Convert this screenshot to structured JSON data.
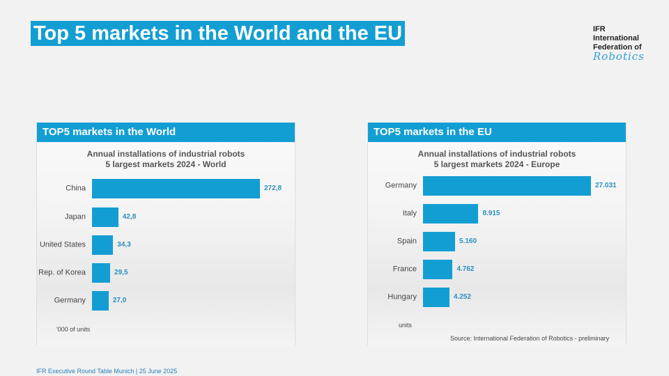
{
  "slide": {
    "title": "Top 5 markets in the World and the EU",
    "footer": "IFR Executive Round Table Munich | 25 June 2025"
  },
  "logo": {
    "line1": "IFR",
    "line2": "International",
    "line3": "Federation of",
    "line4": "Robotics"
  },
  "colors": {
    "accent": "#139ed3"
  },
  "panels": [
    {
      "header": "TOP5 markets in the World",
      "unit_note": "'000 of units"
    },
    {
      "header": "TOP5 markets in the EU",
      "unit_note": "units",
      "source": "Source: International Federation of Robotics - preliminary"
    }
  ],
  "chart_data": [
    {
      "type": "bar",
      "orientation": "horizontal",
      "title": "Annual installations of industrial robots",
      "subtitle": "5 largest markets 2024 - World",
      "categories": [
        "China",
        "Japan",
        "United States",
        "Rep. of Korea",
        "Germany"
      ],
      "values": [
        272.8,
        42.8,
        34.3,
        29.5,
        27.0
      ],
      "labels": [
        "272,8",
        "42,8",
        "34,3",
        "29,5",
        "27,0"
      ],
      "xlim": [
        0,
        272.8
      ],
      "unit": "'000 of units"
    },
    {
      "type": "bar",
      "orientation": "horizontal",
      "title": "Annual installations of industrial robots",
      "subtitle": "5 largest markets 2024 - Europe",
      "categories": [
        "Germany",
        "Italy",
        "Spain",
        "France",
        "Hungary"
      ],
      "values": [
        27031,
        8915,
        5160,
        4762,
        4252
      ],
      "labels": [
        "27.031",
        "8.915",
        "5.160",
        "4.762",
        "4.252"
      ],
      "xlim": [
        0,
        27031
      ],
      "unit": "units"
    }
  ]
}
